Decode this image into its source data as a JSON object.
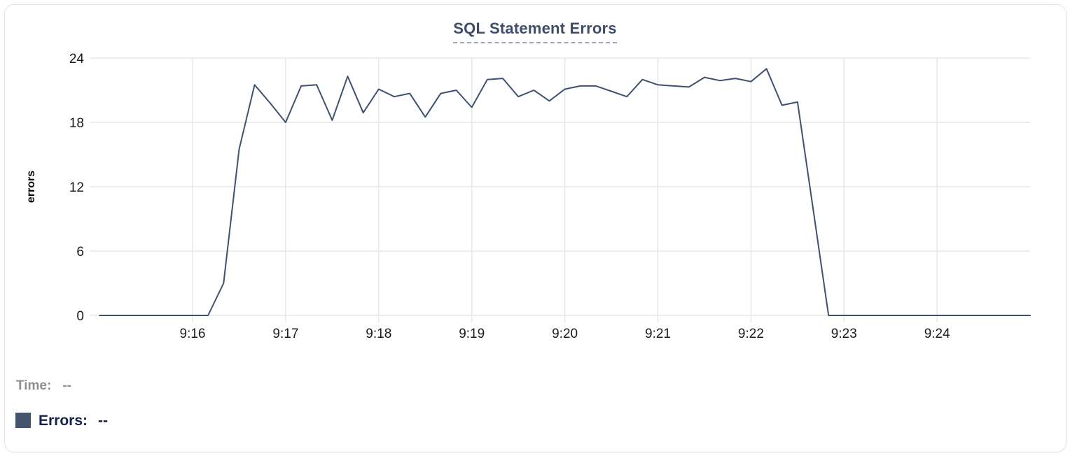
{
  "chart_data": {
    "type": "line",
    "title": "SQL Statement Errors",
    "xlabel": "",
    "ylabel": "errors",
    "ylim": [
      0,
      24
    ],
    "y_ticks": [
      0,
      6,
      12,
      18,
      24
    ],
    "x_tick_labels": [
      "9:16",
      "9:17",
      "9:18",
      "9:19",
      "9:20",
      "9:21",
      "9:22",
      "9:23",
      "9:24"
    ],
    "x_start": "9:14:55",
    "x_end": "9:25:00",
    "grid": true,
    "legend_position": "bottom-left",
    "sample_interval_seconds": 10,
    "series": [
      {
        "name": "Errors",
        "color": "#3e5170",
        "points": [
          [
            "9:15:00",
            0
          ],
          [
            "9:15:10",
            0
          ],
          [
            "9:15:20",
            0
          ],
          [
            "9:15:30",
            0
          ],
          [
            "9:15:40",
            0
          ],
          [
            "9:15:50",
            0
          ],
          [
            "9:16:00",
            0
          ],
          [
            "9:16:10",
            0
          ],
          [
            "9:16:20",
            3
          ],
          [
            "9:16:30",
            15.5
          ],
          [
            "9:16:40",
            21.5
          ],
          [
            "9:16:50",
            19.8
          ],
          [
            "9:17:00",
            18
          ],
          [
            "9:17:10",
            21.4
          ],
          [
            "9:17:20",
            21.5
          ],
          [
            "9:17:30",
            18.2
          ],
          [
            "9:17:40",
            22.3
          ],
          [
            "9:17:50",
            18.9
          ],
          [
            "9:18:00",
            21.1
          ],
          [
            "9:18:10",
            20.4
          ],
          [
            "9:18:20",
            20.7
          ],
          [
            "9:18:30",
            18.5
          ],
          [
            "9:18:40",
            20.7
          ],
          [
            "9:18:50",
            21
          ],
          [
            "9:19:00",
            19.4
          ],
          [
            "9:19:10",
            22
          ],
          [
            "9:19:20",
            22.1
          ],
          [
            "9:19:30",
            20.4
          ],
          [
            "9:19:40",
            21
          ],
          [
            "9:19:50",
            20
          ],
          [
            "9:20:00",
            21.1
          ],
          [
            "9:20:10",
            21.4
          ],
          [
            "9:20:20",
            21.4
          ],
          [
            "9:20:30",
            20.9
          ],
          [
            "9:20:40",
            20.4
          ],
          [
            "9:20:50",
            22
          ],
          [
            "9:21:00",
            21.5
          ],
          [
            "9:21:10",
            21.4
          ],
          [
            "9:21:20",
            21.3
          ],
          [
            "9:21:30",
            22.2
          ],
          [
            "9:21:40",
            21.9
          ],
          [
            "9:21:50",
            22.1
          ],
          [
            "9:22:00",
            21.8
          ],
          [
            "9:22:10",
            23
          ],
          [
            "9:22:20",
            19.6
          ],
          [
            "9:22:30",
            19.9
          ],
          [
            "9:22:40",
            10
          ],
          [
            "9:22:50",
            0
          ],
          [
            "9:23:00",
            0
          ],
          [
            "9:23:10",
            0
          ],
          [
            "9:23:20",
            0
          ],
          [
            "9:23:30",
            0
          ],
          [
            "9:23:40",
            0
          ],
          [
            "9:23:50",
            0
          ],
          [
            "9:24:00",
            0
          ],
          [
            "9:24:10",
            0
          ],
          [
            "9:24:20",
            0
          ],
          [
            "9:24:30",
            0
          ],
          [
            "9:24:40",
            0
          ],
          [
            "9:24:50",
            0
          ],
          [
            "9:25:00",
            0
          ]
        ]
      }
    ]
  },
  "legend": {
    "time_label": "Time:",
    "time_value": "--",
    "errors_label": "Errors:",
    "errors_value": "--",
    "errors_swatch_color": "#44546e"
  },
  "colors": {
    "line": "#3e5170",
    "title": "#3d4d6b",
    "title_underline": "#9aa5b9",
    "grid": "#e7e7e9",
    "axis_text": "#1c1c1e",
    "axis_title": "#000000",
    "time_legend_text": "#8e8e93",
    "errors_legend_text": "#14234d",
    "card_border": "#e2e2e3",
    "background": "#ffffff"
  }
}
